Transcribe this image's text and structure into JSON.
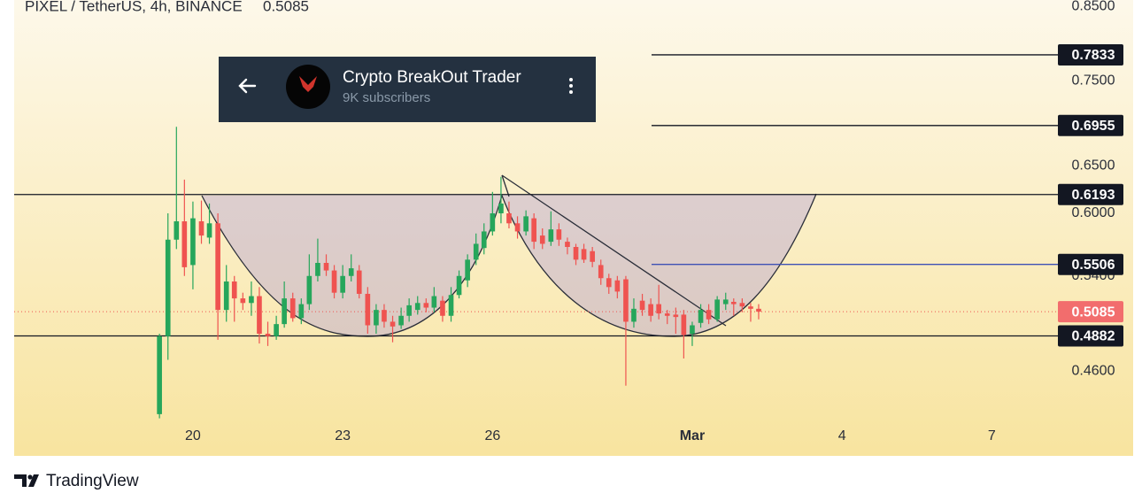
{
  "chart_data": {
    "type": "candlestick",
    "symbol": "PIXEL / TetherUS, 4h, BINANCE",
    "last_price": 0.5085,
    "log_scale": true,
    "up_color": "#26a65b",
    "down_color": "#ef5350",
    "x": [
      19.33,
      19.5,
      19.67,
      19.83,
      20,
      20.17,
      20.33,
      20.5,
      20.67,
      20.83,
      21,
      21.17,
      21.33,
      21.5,
      21.67,
      21.83,
      22,
      22.17,
      22.33,
      22.5,
      22.67,
      22.83,
      23,
      23.17,
      23.33,
      23.5,
      23.67,
      23.83,
      24,
      24.17,
      24.33,
      24.5,
      24.67,
      24.83,
      25,
      25.17,
      25.33,
      25.5,
      25.67,
      25.83,
      26,
      26.17,
      26.33,
      26.5,
      26.67,
      26.83,
      27,
      27.17,
      27.33,
      27.5,
      27.67,
      27.83,
      28,
      28.17,
      28.33,
      28.5,
      28.67,
      28.83,
      29,
      29.17,
      29.33,
      29.5,
      29.67,
      29.83,
      30,
      30.17,
      30.33,
      30.5,
      30.67,
      30.83,
      31,
      31.17,
      31.33
    ],
    "open": [
      0.428,
      0.488,
      0.574,
      0.592,
      0.55,
      0.592,
      0.576,
      0.59,
      0.51,
      0.535,
      0.52,
      0.516,
      0.522,
      0.49,
      0.488,
      0.498,
      0.52,
      0.503,
      0.515,
      0.54,
      0.552,
      0.545,
      0.525,
      0.54,
      0.545,
      0.524,
      0.497,
      0.51,
      0.5,
      0.497,
      0.505,
      0.51,
      0.516,
      0.512,
      0.518,
      0.505,
      0.523,
      0.536,
      0.555,
      0.566,
      0.582,
      0.6,
      0.6,
      0.59,
      0.582,
      0.595,
      0.578,
      0.572,
      0.584,
      0.572,
      0.567,
      0.565,
      0.563,
      0.55,
      0.538,
      0.536,
      0.537,
      0.5,
      0.518,
      0.515,
      0.515,
      0.507,
      0.506,
      0.506,
      0.49,
      0.499,
      0.51,
      0.502,
      0.515,
      0.517,
      0.516,
      0.513,
      0.511
    ],
    "high": [
      0.49,
      0.6,
      0.694,
      0.635,
      0.612,
      0.613,
      0.61,
      0.6,
      0.55,
      0.54,
      0.525,
      0.535,
      0.53,
      0.5,
      0.505,
      0.535,
      0.525,
      0.52,
      0.56,
      0.575,
      0.56,
      0.55,
      0.55,
      0.56,
      0.55,
      0.53,
      0.515,
      0.515,
      0.505,
      0.512,
      0.52,
      0.522,
      0.52,
      0.53,
      0.522,
      0.53,
      0.545,
      0.56,
      0.58,
      0.59,
      0.622,
      0.638,
      0.612,
      0.597,
      0.603,
      0.6,
      0.585,
      0.602,
      0.59,
      0.576,
      0.57,
      0.57,
      0.567,
      0.555,
      0.542,
      0.54,
      0.54,
      0.52,
      0.524,
      0.52,
      0.532,
      0.51,
      0.512,
      0.51,
      0.5,
      0.515,
      0.515,
      0.522,
      0.525,
      0.52,
      0.52,
      0.516,
      0.515
    ],
    "low": [
      0.425,
      0.469,
      0.565,
      0.54,
      0.528,
      0.57,
      0.57,
      0.485,
      0.5,
      0.5,
      0.51,
      0.505,
      0.482,
      0.48,
      0.485,
      0.495,
      0.5,
      0.498,
      0.51,
      0.535,
      0.54,
      0.52,
      0.52,
      0.535,
      0.52,
      0.49,
      0.49,
      0.495,
      0.483,
      0.494,
      0.5,
      0.506,
      0.508,
      0.508,
      0.5,
      0.5,
      0.52,
      0.53,
      0.55,
      0.56,
      0.578,
      0.59,
      0.585,
      0.575,
      0.578,
      0.565,
      0.565,
      0.568,
      0.568,
      0.56,
      0.55,
      0.552,
      0.548,
      0.532,
      0.524,
      0.52,
      0.449,
      0.495,
      0.505,
      0.5,
      0.502,
      0.498,
      0.49,
      0.47,
      0.48,
      0.495,
      0.498,
      0.5,
      0.51,
      0.505,
      0.508,
      0.5,
      0.502
    ],
    "close": [
      0.488,
      0.574,
      0.592,
      0.548,
      0.595,
      0.578,
      0.59,
      0.51,
      0.535,
      0.52,
      0.516,
      0.522,
      0.49,
      0.488,
      0.498,
      0.52,
      0.503,
      0.515,
      0.54,
      0.552,
      0.545,
      0.525,
      0.54,
      0.547,
      0.524,
      0.497,
      0.51,
      0.5,
      0.496,
      0.505,
      0.514,
      0.516,
      0.512,
      0.522,
      0.505,
      0.523,
      0.54,
      0.555,
      0.57,
      0.582,
      0.6,
      0.61,
      0.59,
      0.582,
      0.597,
      0.572,
      0.57,
      0.584,
      0.574,
      0.567,
      0.555,
      0.555,
      0.553,
      0.538,
      0.53,
      0.526,
      0.5,
      0.511,
      0.51,
      0.505,
      0.507,
      0.505,
      0.504,
      0.489,
      0.497,
      0.51,
      0.502,
      0.519,
      0.519,
      0.515,
      0.513,
      0.511,
      0.5085
    ],
    "xlim": [
      16.42,
      38.83
    ],
    "xticks": [
      20,
      23,
      26,
      {
        "value": 30,
        "label": "Mar"
      },
      {
        "value": 33,
        "label": "4"
      },
      {
        "value": 36,
        "label": "7"
      }
    ],
    "ylim": [
      0.399,
      0.859
    ],
    "yticks": [
      {
        "value": 0.85,
        "label": "0.8500"
      },
      {
        "value": 0.75,
        "label": "0.7500"
      },
      {
        "value": 0.65,
        "label": "0.6500"
      },
      {
        "value": 0.6,
        "label": "0.6000"
      },
      {
        "value": 0.54,
        "label": "0.5400"
      },
      {
        "value": 0.46,
        "label": "0.4600"
      }
    ],
    "levels": [
      0.7833,
      0.6955,
      0.6193,
      0.5506,
      0.4882
    ]
  },
  "overlay": {
    "title": "Crypto BreakOut Trader",
    "subtitle": "9K subscribers"
  },
  "footer": {
    "brand": "TradingView"
  }
}
